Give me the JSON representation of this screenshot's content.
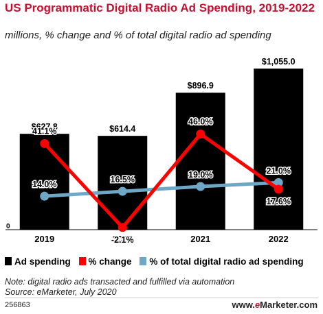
{
  "title": "US Programmatic Digital Radio Ad Spending, 2019-2022",
  "subtitle": "millions, % change and % of total digital radio ad spending",
  "chart_data": {
    "type": "bar",
    "categories": [
      "2019",
      "2020",
      "2021",
      "2022"
    ],
    "series": [
      {
        "name": "Ad spending",
        "type": "bar",
        "color": "#000000",
        "values": [
          627.8,
          614.4,
          896.9,
          1055.0
        ],
        "labels": [
          "$627.8",
          "$614.4",
          "$896.9",
          "$1,055.0"
        ]
      },
      {
        "name": "% change",
        "type": "line",
        "color": "#ff0000",
        "values": [
          41.1,
          -2.1,
          46.0,
          17.6
        ],
        "labels": [
          "41.1%",
          "-2.1%",
          "46.0%",
          "17.6%"
        ]
      },
      {
        "name": "% of total digital radio ad spending",
        "type": "line",
        "color": "#6fa8c7",
        "values": [
          14.0,
          16.5,
          19.0,
          21.0
        ],
        "labels": [
          "14.0%",
          "16.5%",
          "19.0%",
          "21.0%"
        ]
      }
    ],
    "y_zero_label": "0",
    "ylim": [
      0,
      1100
    ],
    "legend_position": "bottom"
  },
  "note": "Note: digital radio ads transacted and fulfilled via automation",
  "source": "Source: eMarketer, July 2020",
  "chart_id": "256863",
  "brand": {
    "prefix": "www.",
    "e": "e",
    "rest": "Marketer",
    "suffix": ".com"
  }
}
